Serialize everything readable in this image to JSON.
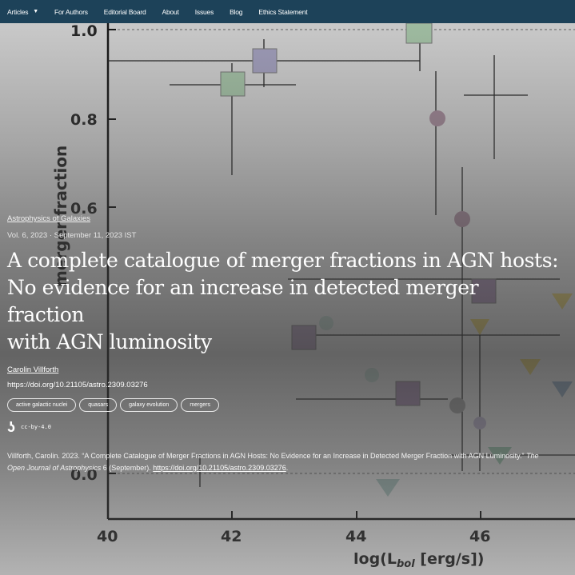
{
  "nav": {
    "items": [
      {
        "label": "Articles",
        "has_dropdown": true
      },
      {
        "label": "For Authors"
      },
      {
        "label": "Editorial Board"
      },
      {
        "label": "About"
      },
      {
        "label": "Issues"
      },
      {
        "label": "Blog"
      },
      {
        "label": "Ethics Statement"
      }
    ],
    "background": "#1d4259",
    "caret_icon": "chevron-down-icon"
  },
  "figure": {
    "ylabel": "merger fraction",
    "xlabel": "log(L",
    "xlabel_sub": "bol",
    "xlabel_tail": " [erg/s])",
    "y_ticks": [
      "1.0",
      "0.8",
      "0.6",
      "0.0"
    ],
    "x_ticks": [
      "40",
      "42",
      "44",
      "46"
    ]
  },
  "article": {
    "category": "Astrophysics of Galaxies",
    "meta": "Vol. 6, 2023 · September 11, 2023 IST",
    "title_lines": [
      "A complete catalogue of merger fractions in AGN hosts:",
      "No evidence for an increase in detected merger fraction",
      "with AGN luminosity"
    ],
    "author": "Carolin Villforth",
    "doi": "https://doi.org/10.21105/astro.2309.03276",
    "tags": [
      "active galactic nuclei",
      "quasars",
      "galaxy evolution",
      "mergers"
    ],
    "license_icon": "open-access-icon",
    "license": "cc-by-4.0",
    "citation": {
      "prefix": "Villforth, Carolin. 2023. “A Complete Catalogue of Merger Fractions in AGN Hosts: No Evidence for an Increase in Detected Merger Fraction with AGN Luminosity.” ",
      "journal": "The Open Journal of Astrophysics",
      "suffix": " 6 (September). ",
      "link": "https://doi.org/10.21105/astro.2309.03276",
      "end": "."
    }
  }
}
